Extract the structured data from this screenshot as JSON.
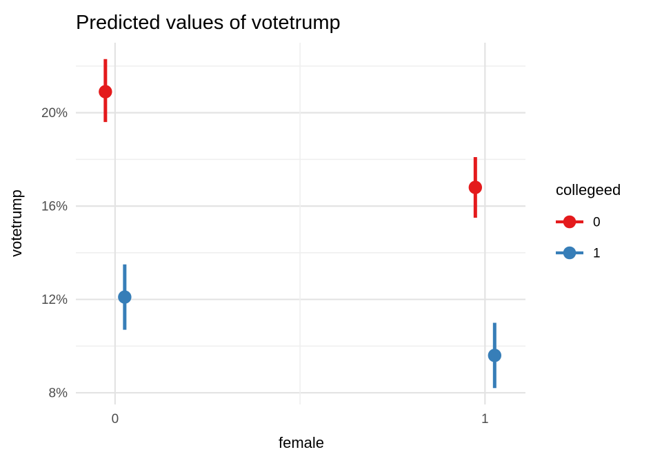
{
  "chart_data": {
    "type": "pointrange",
    "title": "Predicted values of votetrump",
    "xlabel": "female",
    "ylabel": "votetrump",
    "x_categories": [
      "0",
      "1"
    ],
    "y_ticks": [
      {
        "value": 8,
        "label": "8%"
      },
      {
        "value": 12,
        "label": "12%"
      },
      {
        "value": 16,
        "label": "16%"
      },
      {
        "value": 20,
        "label": "20%"
      }
    ],
    "y_minor_ticks": [
      10,
      14,
      18,
      22
    ],
    "ylim": [
      7.5,
      23.0
    ],
    "grid": true,
    "legend": {
      "title": "collegeed",
      "position": "right",
      "entries": [
        {
          "label": "0",
          "color": "#E41A1C"
        },
        {
          "label": "1",
          "color": "#377EB8"
        }
      ]
    },
    "series": [
      {
        "name": "0",
        "color": "#E41A1C",
        "points": [
          {
            "x": "0",
            "y": 20.9,
            "ymin": 19.6,
            "ymax": 22.3
          },
          {
            "x": "1",
            "y": 16.8,
            "ymin": 15.5,
            "ymax": 18.1
          }
        ]
      },
      {
        "name": "1",
        "color": "#377EB8",
        "points": [
          {
            "x": "0",
            "y": 12.1,
            "ymin": 10.7,
            "ymax": 13.5
          },
          {
            "x": "1",
            "y": 9.6,
            "ymin": 8.2,
            "ymax": 11.0
          }
        ]
      }
    ],
    "colors": {
      "background": "#FFFFFF",
      "grid_major": "#E3E3E3",
      "grid_minor": "#EFEFEF",
      "tick_label": "#4D4D4D",
      "text": "#000000"
    }
  }
}
